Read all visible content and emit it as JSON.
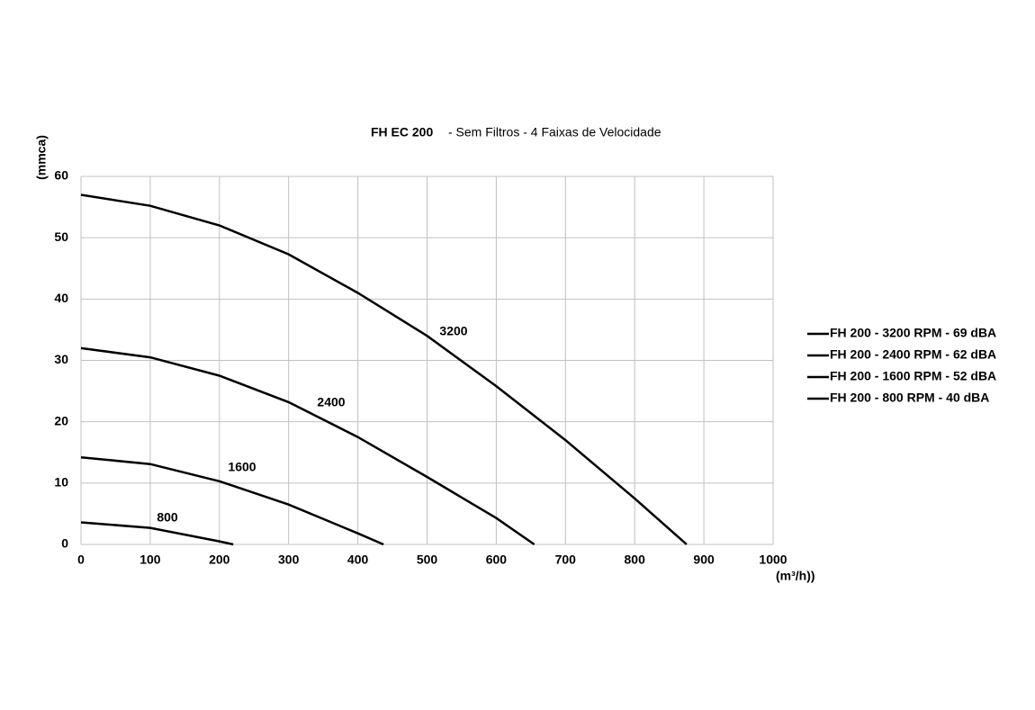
{
  "chart_data": {
    "type": "line",
    "title": "FH EC 200",
    "subtitle": "- Sem Filtros - 4 Faixas de Velocidade",
    "y_label": "(mmca)",
    "x_label": "(m³/h))",
    "xlim": [
      0,
      1000
    ],
    "xticks": [
      0,
      100,
      200,
      300,
      400,
      500,
      600,
      700,
      800,
      900,
      1000
    ],
    "ylim": [
      0,
      60
    ],
    "yticks": [
      0,
      10,
      20,
      30,
      40,
      50,
      60
    ],
    "grid": true,
    "legend": "right",
    "series": [
      {
        "name": "FH 200 - 3200 RPM - 69 dBA",
        "label": "3200",
        "color": "#000000",
        "x": [
          0,
          100,
          200,
          300,
          400,
          500,
          600,
          700,
          800,
          875
        ],
        "values": [
          57,
          55.2,
          52,
          47.3,
          41,
          34,
          25.8,
          17,
          7.5,
          0
        ]
      },
      {
        "name": "FH 200 - 2400 RPM - 62 dBA",
        "label": "2400",
        "color": "#000000",
        "x": [
          0,
          100,
          200,
          300,
          400,
          500,
          600,
          655
        ],
        "values": [
          32,
          30.5,
          27.5,
          23.2,
          17.5,
          11,
          4.3,
          0
        ]
      },
      {
        "name": "FH 200 - 1600 RPM - 52 dBA",
        "label": "1600",
        "color": "#000000",
        "x": [
          0,
          100,
          200,
          300,
          400,
          437
        ],
        "values": [
          14.2,
          13.1,
          10.3,
          6.5,
          1.8,
          0
        ]
      },
      {
        "name": "FH 200 - 800 RPM - 40 dBA",
        "label": "800",
        "color": "#000000",
        "x": [
          0,
          100,
          200,
          220
        ],
        "values": [
          3.6,
          2.7,
          0.5,
          0
        ]
      }
    ]
  }
}
